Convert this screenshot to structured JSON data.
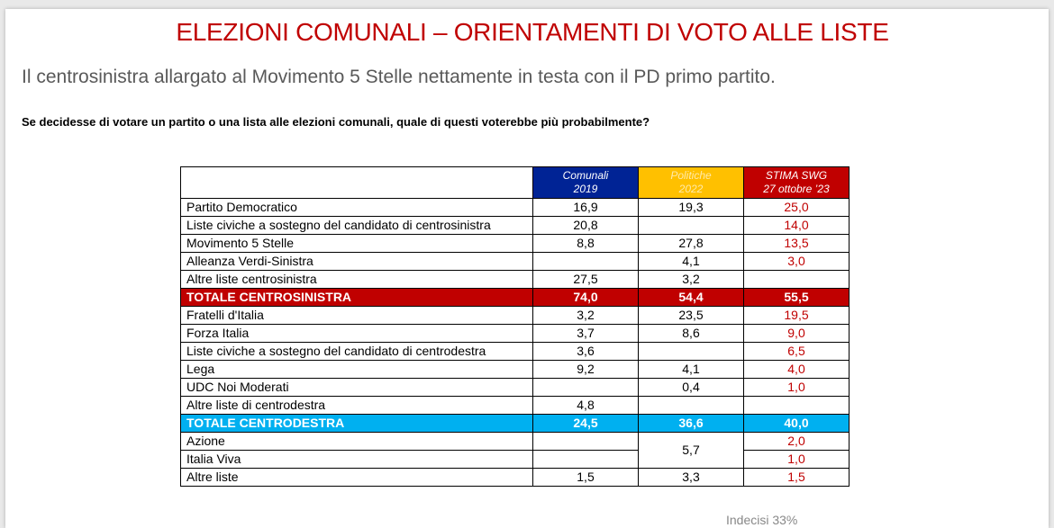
{
  "title": "ELEZIONI COMUNALI – ORIENTAMENTI DI VOTO ALLE LISTE",
  "subtitle": "Il centrosinistra allargato al Movimento 5 Stelle nettamente in testa con il PD primo partito.",
  "question": "Se decidesse di votare un partito o una lista alle elezioni comunali, quale di questi voterebbe più probabilmente?",
  "table": {
    "headers": {
      "col1_line1": "Comunali",
      "col1_line2": "2019",
      "col2_line1": "Politiche",
      "col2_line2": "2022",
      "col3_line1": "STIMA SWG",
      "col3_line2": "27 ottobre ’23"
    },
    "colors": {
      "comunali": "#002395",
      "politiche": "#ffc000",
      "stima": "#c00000",
      "tot_cs": "#c00000",
      "tot_cd": "#00b0f0"
    },
    "rows": [
      {
        "name": "Partito Democratico",
        "c2019": "16,9",
        "p2022": "19,3",
        "stima": "25,0"
      },
      {
        "name": "Liste civiche a sostegno del candidato di centrosinistra",
        "c2019": "20,8",
        "p2022": "",
        "stima": "14,0"
      },
      {
        "name": "Movimento 5 Stelle",
        "c2019": "8,8",
        "p2022": "27,8",
        "stima": "13,5"
      },
      {
        "name": "Alleanza Verdi-Sinistra",
        "c2019": "",
        "p2022": "4,1",
        "stima": "3,0"
      },
      {
        "name": "Altre liste centrosinistra",
        "c2019": "27,5",
        "p2022": "3,2",
        "stima": ""
      },
      {
        "name": "TOTALE CENTROSINISTRA",
        "c2019": "74,0",
        "p2022": "54,4",
        "stima": "55,5"
      },
      {
        "name": "Fratelli d'Italia",
        "c2019": "3,2",
        "p2022": "23,5",
        "stima": "19,5"
      },
      {
        "name": "Forza Italia",
        "c2019": "3,7",
        "p2022": "8,6",
        "stima": "9,0"
      },
      {
        "name": "Liste civiche a sostegno del candidato di centrodestra",
        "c2019": "3,6",
        "p2022": "",
        "stima": "6,5"
      },
      {
        "name": "Lega",
        "c2019": "9,2",
        "p2022": "4,1",
        "stima": "4,0"
      },
      {
        "name": "UDC Noi Moderati",
        "c2019": "",
        "p2022": "0,4",
        "stima": "1,0"
      },
      {
        "name": "Altre liste di centrodestra",
        "c2019": "4,8",
        "p2022": "",
        "stima": ""
      },
      {
        "name": "TOTALE CENTRODESTRA",
        "c2019": "24,5",
        "p2022": "36,6",
        "stima": "40,0"
      },
      {
        "name": "Azione",
        "c2019": "",
        "p2022": "5,7",
        "stima": "2,0"
      },
      {
        "name": "Italia Viva",
        "c2019": "",
        "stima": "1,0"
      },
      {
        "name": "Altre liste",
        "c2019": "1,5",
        "p2022": "3,3",
        "stima": "1,5"
      }
    ]
  },
  "footnote": "Indecisi 33%"
}
